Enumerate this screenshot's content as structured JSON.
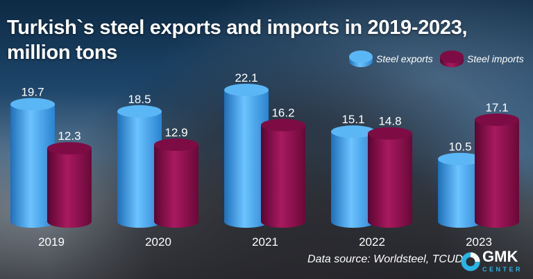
{
  "chart_data": {
    "type": "bar",
    "title": "Turkish`s steel exports and imports in 2019-2023, million tons",
    "categories": [
      "2019",
      "2020",
      "2021",
      "2022",
      "2023"
    ],
    "series": [
      {
        "name": "Steel exports",
        "values": [
          19.7,
          18.5,
          22.1,
          15.1,
          10.5
        ],
        "color": "#3fa3ea"
      },
      {
        "name": "Steel imports",
        "values": [
          12.3,
          12.9,
          16.2,
          14.8,
          17.1
        ],
        "color": "#8c0f4c"
      }
    ],
    "legend_placement": "top-right",
    "grid": false,
    "bar_style": "3d-cylinder",
    "ylim": [
      0,
      25
    ]
  },
  "source": "Data source: Worldsteel, TCUD",
  "logo": {
    "text": "GMK",
    "subtext": "CENTER",
    "color": "#2bb3e6"
  }
}
